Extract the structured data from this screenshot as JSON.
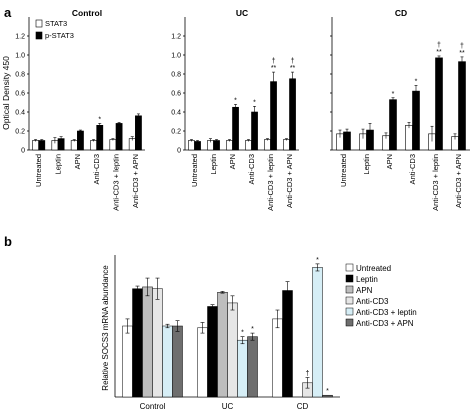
{
  "panel_labels": {
    "a": "a",
    "b": "b"
  },
  "chart_data": [
    {
      "type": "bar",
      "panel": "a",
      "title": "Control",
      "ylabel": "Optical Density 450",
      "ylim": [
        0,
        1.4
      ],
      "yticks": [
        "0",
        "0.2",
        "0.4",
        "0.6",
        "0.8",
        "1.0",
        "1.2"
      ],
      "categories": [
        "Untreated",
        "Leptin",
        "APN",
        "Anti-CD3",
        "Anti-CD3 + leptin",
        "Anti-CD3 + APN"
      ],
      "legend": [
        "STAT3",
        "p-STAT3"
      ],
      "series": [
        {
          "name": "STAT3",
          "color": "#ffffff",
          "values": [
            0.1,
            0.1,
            0.1,
            0.1,
            0.11,
            0.12
          ],
          "errors": [
            0.01,
            0.03,
            0.01,
            0.01,
            0.01,
            0.02
          ]
        },
        {
          "name": "p-STAT3",
          "color": "#000000",
          "values": [
            0.1,
            0.12,
            0.2,
            0.26,
            0.28,
            0.36
          ],
          "errors": [
            0.01,
            0.02,
            0.01,
            0.02,
            0.01,
            0.02
          ]
        }
      ],
      "annotations": [
        "",
        "",
        "",
        "*",
        "",
        ""
      ]
    },
    {
      "type": "bar",
      "panel": "a",
      "title": "UC",
      "ylim": [
        0,
        1.4
      ],
      "yticks": [
        "0",
        "0.2",
        "0.4",
        "0.6",
        "0.8",
        "1.0",
        "1.2"
      ],
      "categories": [
        "Untreated",
        "Leptin",
        "APN",
        "Anti-CD3",
        "Anti-CD3 + leptin",
        "Anti-CD3 + APN"
      ],
      "series": [
        {
          "name": "STAT3",
          "color": "#ffffff",
          "values": [
            0.1,
            0.1,
            0.1,
            0.1,
            0.11,
            0.11
          ],
          "errors": [
            0.01,
            0.02,
            0.01,
            0.01,
            0.01,
            0.01
          ]
        },
        {
          "name": "p-STAT3",
          "color": "#000000",
          "values": [
            0.09,
            0.1,
            0.45,
            0.4,
            0.72,
            0.75
          ],
          "errors": [
            0.01,
            0.01,
            0.03,
            0.06,
            0.1,
            0.07
          ]
        }
      ],
      "annotations": [
        "",
        "",
        "*",
        "*",
        "†\n**",
        "†\n**"
      ]
    },
    {
      "type": "bar",
      "panel": "a",
      "title": "CD",
      "ylim": [
        0,
        1.4
      ],
      "yticks": [
        "0",
        "0.2",
        "0.4",
        "0.6",
        "0.8",
        "1.0",
        "1.2"
      ],
      "categories": [
        "Untreated",
        "Leptin",
        "APN",
        "Anti-CD3",
        "Anti-CD3 + leptin",
        "Anti-CD3 + APN"
      ],
      "series": [
        {
          "name": "STAT3",
          "color": "#ffffff",
          "values": [
            0.17,
            0.17,
            0.15,
            0.26,
            0.17,
            0.14
          ],
          "errors": [
            0.04,
            0.05,
            0.03,
            0.03,
            0.08,
            0.03
          ]
        },
        {
          "name": "p-STAT3",
          "color": "#000000",
          "values": [
            0.19,
            0.21,
            0.53,
            0.62,
            0.97,
            0.93
          ],
          "errors": [
            0.03,
            0.07,
            0.02,
            0.06,
            0.02,
            0.05
          ]
        }
      ],
      "annotations": [
        "",
        "",
        "*",
        "*",
        "†\n**",
        "†\n**"
      ]
    },
    {
      "type": "bar",
      "panel": "b",
      "ylabel": "Relative SOCS3 mRNA abundance",
      "ylim": [
        0,
        0.8
      ],
      "categories": [
        "Control",
        "UC",
        "CD"
      ],
      "legend": [
        "Untreated",
        "Leptin",
        "APN",
        "Anti-CD3",
        "Anti-CD3 + leptin",
        "Anti-CD3 + APN"
      ],
      "series": [
        {
          "name": "Untreated",
          "color": "#ffffff",
          "values": [
            0.4,
            0.39,
            0.44
          ],
          "errors": [
            0.04,
            0.03,
            0.05
          ]
        },
        {
          "name": "Leptin",
          "color": "#000000",
          "values": [
            0.61,
            0.51,
            0.6
          ],
          "errors": [
            0.015,
            0.01,
            0.05
          ]
        },
        {
          "name": "APN",
          "color": "#bdbdbd",
          "values": [
            0.62,
            0.59,
            0.0
          ],
          "errors": [
            0.05,
            0.005,
            0.0
          ]
        },
        {
          "name": "Anti-CD3",
          "color": "#e6e6e6",
          "values": [
            0.61,
            0.53,
            0.08
          ],
          "errors": [
            0.06,
            0.04,
            0.03
          ]
        },
        {
          "name": "Anti-CD3 + leptin",
          "color": "#d6eef6",
          "values": [
            0.4,
            0.32,
            0.73
          ],
          "errors": [
            0.01,
            0.02,
            0.02
          ]
        },
        {
          "name": "Anti-CD3 + APN",
          "color": "#6e6e6e",
          "values": [
            0.4,
            0.34,
            0.01
          ],
          "errors": [
            0.03,
            0.02,
            0.0
          ]
        }
      ],
      "annotations": [
        [
          "",
          "",
          "",
          "",
          "",
          ""
        ],
        [
          "",
          "",
          "",
          "",
          "*",
          "*"
        ],
        [
          "",
          "",
          "",
          "†",
          "*",
          "*"
        ]
      ]
    }
  ]
}
